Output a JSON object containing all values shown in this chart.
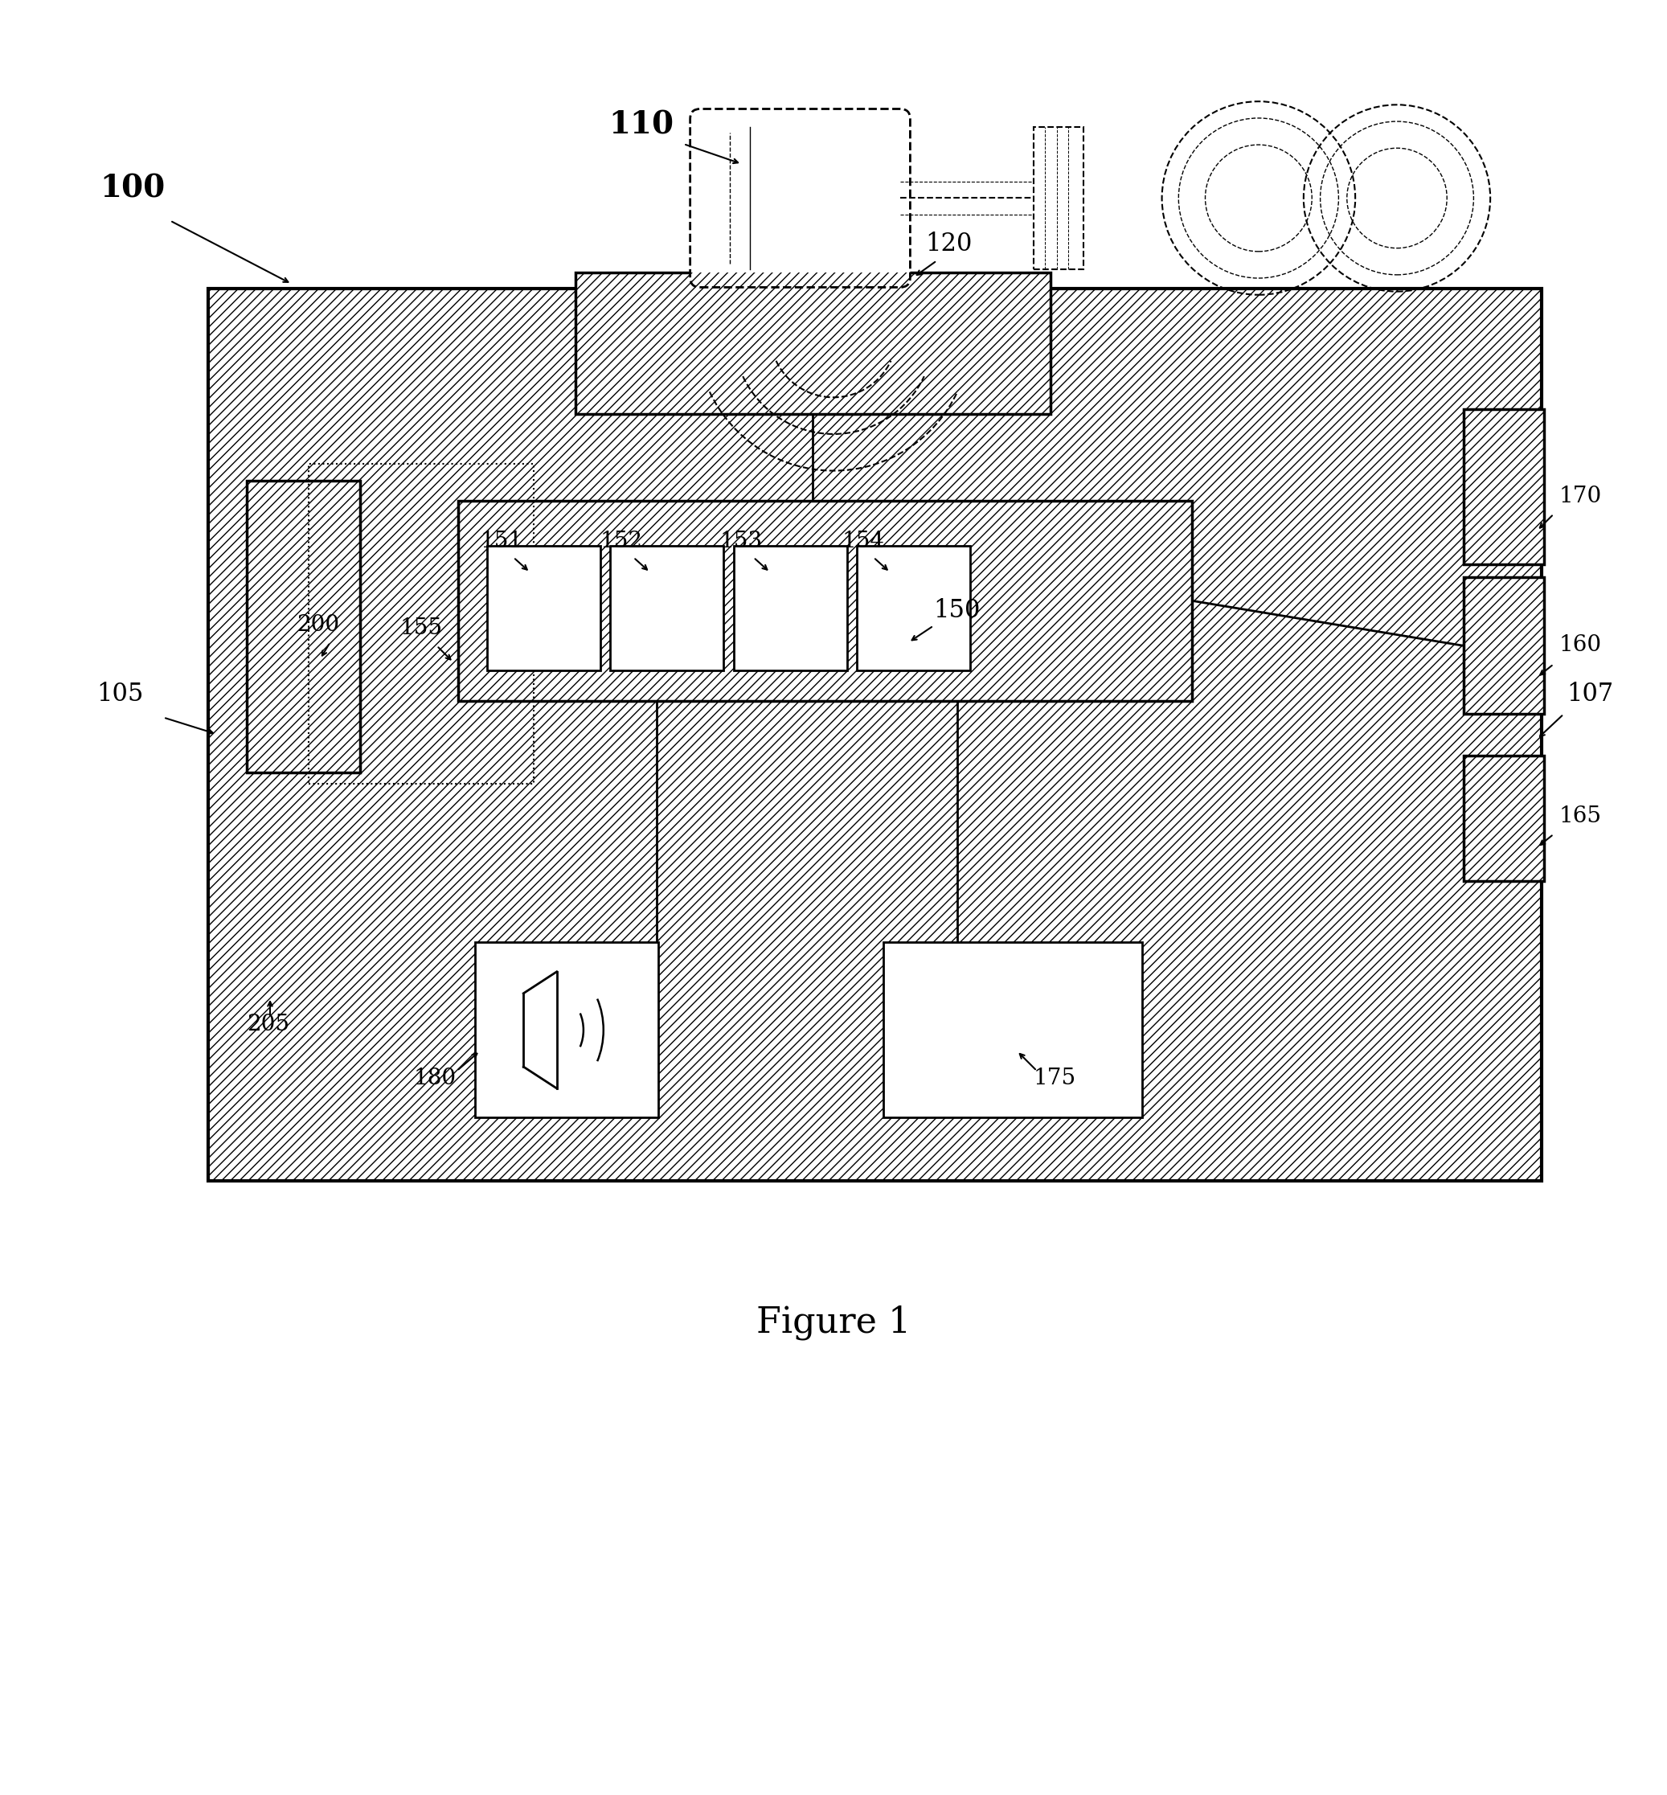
{
  "figure_title": "Figure 1",
  "bg_color": "#ffffff",
  "line_color": "#000000",
  "title_fontsize": 32,
  "label_fontsize_large": 28,
  "label_fontsize_medium": 22,
  "label_fontsize_small": 20
}
